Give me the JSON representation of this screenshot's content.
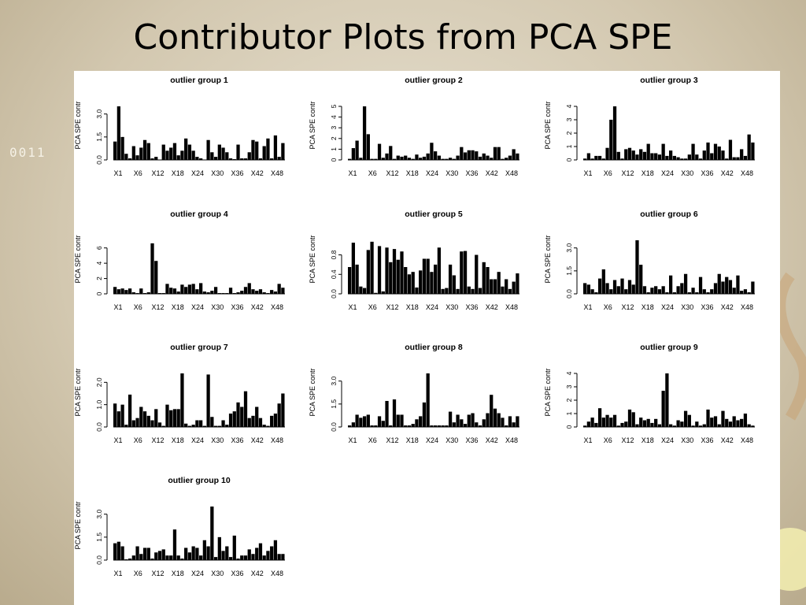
{
  "slide": {
    "title": "Contributor Plots from PCA SPE",
    "decor_text": "0011"
  },
  "colors": {
    "bar": "#000000",
    "panel": "#ffffff",
    "background": "#d8ceb8"
  },
  "chart_data": [
    {
      "type": "bar",
      "title": "outlier group 1",
      "ylabel": "PCA SPE contr",
      "ylim": [
        0,
        3.5
      ],
      "yticks": [
        0,
        1.5,
        3.0
      ],
      "yticklabels": [
        "0.0",
        "1.5",
        "3.0"
      ],
      "xticklabels": [
        "X1",
        "X6",
        "X12",
        "X18",
        "X24",
        "X30",
        "X36",
        "X42",
        "X48"
      ],
      "values": [
        1.2,
        3.6,
        1.5,
        0.4,
        0.1,
        0.9,
        0.3,
        0.8,
        1.3,
        1.1,
        0.1,
        0.2,
        0,
        1.0,
        0.6,
        0.8,
        1.1,
        0.3,
        0.6,
        1.4,
        1.0,
        0.6,
        0.2,
        0.1,
        0,
        1.3,
        0.5,
        0.2,
        1.0,
        0.8,
        0.5,
        0.1,
        0.05,
        1.0,
        0.1,
        0.1,
        0.5,
        1.3,
        1.2,
        0.1,
        0.9,
        1.4,
        0.1,
        1.6,
        0.2,
        1.1
      ]
    },
    {
      "type": "bar",
      "title": "outlier group 2",
      "ylabel": "PCA SPE contr",
      "ylim": [
        0,
        5
      ],
      "yticks": [
        0,
        1,
        2,
        3,
        4,
        5
      ],
      "yticklabels": [
        "0",
        "1",
        "2",
        "3",
        "4",
        "5"
      ],
      "xticklabels": [
        "X1",
        "X6",
        "X12",
        "X18",
        "X24",
        "X30",
        "X36",
        "X42",
        "X48"
      ],
      "values": [
        0.1,
        1.1,
        1.8,
        0.2,
        5.3,
        2.4,
        0.1,
        0.1,
        1.5,
        0.2,
        0.6,
        1.3,
        0.1,
        0.4,
        0.3,
        0.4,
        0.2,
        0.1,
        0.5,
        0.2,
        0.3,
        0.6,
        1.6,
        0.8,
        0.4,
        0.1,
        0.1,
        0.2,
        0.1,
        0.4,
        1.2,
        0.7,
        0.9,
        0.9,
        0.8,
        0.3,
        0.6,
        0.4,
        0.2,
        1.2,
        1.2,
        0.1,
        0.2,
        0.4,
        1.0,
        0.6
      ]
    },
    {
      "type": "bar",
      "title": "outlier group 3",
      "ylabel": "PCA SPE contr",
      "ylim": [
        0,
        4
      ],
      "yticks": [
        0,
        1,
        2,
        3,
        4
      ],
      "yticklabels": [
        "0",
        "1",
        "2",
        "3",
        "4"
      ],
      "xticklabels": [
        "X1",
        "X6",
        "X12",
        "X18",
        "X24",
        "X30",
        "X36",
        "X42",
        "X48"
      ],
      "values": [
        0.1,
        0.5,
        0.1,
        0.3,
        0.3,
        0.1,
        0.9,
        3.0,
        4.1,
        0.6,
        0.1,
        0.8,
        0.9,
        0.7,
        0.4,
        0.8,
        0.6,
        1.2,
        0.5,
        0.5,
        0.4,
        1.2,
        0.3,
        0.7,
        0.3,
        0.2,
        0.1,
        0.1,
        0.4,
        1.2,
        0.4,
        0.1,
        0.7,
        1.3,
        0.5,
        1.2,
        1.0,
        0.7,
        0.1,
        1.5,
        0.2,
        0.2,
        0.8,
        0.3,
        1.9,
        1.3
      ]
    },
    {
      "type": "bar",
      "title": "outlier group 4",
      "ylabel": "PCA SPE contr",
      "ylim": [
        0,
        7
      ],
      "yticks": [
        0,
        2,
        4,
        6
      ],
      "yticklabels": [
        "0",
        "2",
        "4",
        "6"
      ],
      "xticklabels": [
        "X1",
        "X6",
        "X12",
        "X18",
        "X24",
        "X30",
        "X36",
        "X42",
        "X48"
      ],
      "values": [
        0.9,
        0.6,
        0.7,
        0.5,
        0.7,
        0.2,
        0.1,
        0.7,
        0.1,
        0.2,
        6.6,
        4.3,
        0.1,
        0.1,
        1.3,
        0.8,
        0.7,
        0.3,
        1.2,
        0.9,
        1.2,
        1.3,
        0.6,
        1.4,
        0.3,
        0.2,
        0.4,
        0.9,
        0.1,
        0.1,
        0.1,
        0.8,
        0.1,
        0.2,
        0.4,
        0.9,
        1.4,
        0.6,
        0.4,
        0.6,
        0.2,
        0.1,
        0.5,
        0.3,
        1.3,
        0.8
      ]
    },
    {
      "type": "bar",
      "title": "outlier group 5",
      "ylabel": "PCA SPE contr",
      "ylim": [
        0,
        1.1
      ],
      "yticks": [
        0,
        0.4,
        0.8
      ],
      "yticklabels": [
        "0.0",
        "0.4",
        "0.8"
      ],
      "xticklabels": [
        "X1",
        "X6",
        "X12",
        "X18",
        "X24",
        "X30",
        "X36",
        "X42",
        "X48"
      ],
      "values": [
        0.55,
        1.05,
        0.6,
        0.15,
        0.12,
        0.9,
        1.07,
        0.02,
        0.98,
        0.05,
        0.95,
        0.65,
        0.92,
        0.7,
        0.87,
        0.55,
        0.4,
        0.45,
        0.13,
        0.48,
        0.72,
        0.72,
        0.45,
        0.6,
        0.95,
        0.1,
        0.12,
        0.6,
        0.38,
        0.1,
        0.87,
        0.88,
        0.15,
        0.1,
        0.8,
        0.12,
        0.65,
        0.55,
        0.3,
        0.3,
        0.45,
        0.15,
        0.3,
        0.1,
        0.25,
        0.42
      ]
    },
    {
      "type": "bar",
      "title": "outlier group 6",
      "ylabel": "PCA SPE contr",
      "ylim": [
        0,
        3.5
      ],
      "yticks": [
        0,
        1.5,
        3.0
      ],
      "yticklabels": [
        "0.0",
        "1.5",
        "3.0"
      ],
      "xticklabels": [
        "X1",
        "X6",
        "X12",
        "X18",
        "X24",
        "X30",
        "X36",
        "X42",
        "X48"
      ],
      "values": [
        0.7,
        0.6,
        0.3,
        0.1,
        1.0,
        1.6,
        0.7,
        0.3,
        0.9,
        0.5,
        1.0,
        0.3,
        0.9,
        0.6,
        3.5,
        1.9,
        0.5,
        0.1,
        0.4,
        0.5,
        0.3,
        0.5,
        0.1,
        1.2,
        0.1,
        0.5,
        0.7,
        1.3,
        0.1,
        0.4,
        0.1,
        1.1,
        0.3,
        0.1,
        0.3,
        0.7,
        1.3,
        0.8,
        1.1,
        0.9,
        0.4,
        1.2,
        0.2,
        0.3,
        0.1,
        0.8
      ]
    },
    {
      "type": "bar",
      "title": "outlier group 7",
      "ylabel": "PCA SPE contr",
      "ylim": [
        0,
        2.4
      ],
      "yticks": [
        0,
        1.0,
        2.0
      ],
      "yticklabels": [
        "0.0",
        "1.0",
        "2.0"
      ],
      "xticklabels": [
        "X1",
        "X6",
        "X12",
        "X18",
        "X24",
        "X30",
        "X36",
        "X42",
        "X48"
      ],
      "values": [
        1.05,
        0.7,
        1.0,
        0.1,
        1.45,
        0.3,
        0.4,
        0.9,
        0.7,
        0.5,
        0.3,
        0.8,
        0.2,
        0.05,
        1.0,
        0.75,
        0.8,
        0.8,
        2.4,
        0.15,
        0.05,
        0.1,
        0.3,
        0.3,
        0.05,
        2.35,
        0.45,
        0.05,
        0.05,
        0.3,
        0.1,
        0.6,
        0.7,
        1.1,
        0.9,
        1.6,
        0.4,
        0.5,
        0.9,
        0.4,
        0.1,
        0.05,
        0.5,
        0.6,
        1.05,
        1.5
      ]
    },
    {
      "type": "bar",
      "title": "outlier group 8",
      "ylabel": "PCA SPE contr",
      "ylim": [
        0,
        3.5
      ],
      "yticks": [
        0,
        1.5,
        3.0
      ],
      "yticklabels": [
        "0.0",
        "1.5",
        "3.0"
      ],
      "xticklabels": [
        "X1",
        "X6",
        "X12",
        "X18",
        "X24",
        "X30",
        "X36",
        "X42",
        "X48"
      ],
      "values": [
        0.1,
        0.3,
        0.8,
        0.6,
        0.7,
        0.8,
        0.1,
        0.1,
        0.7,
        0.4,
        1.7,
        0.1,
        1.8,
        0.8,
        0.8,
        0.1,
        0.1,
        0.2,
        0.5,
        0.7,
        1.6,
        3.5,
        0.1,
        0.1,
        0.1,
        0.1,
        0.1,
        1.0,
        0.3,
        0.8,
        0.5,
        0.2,
        0.8,
        0.9,
        0.3,
        0.1,
        0.5,
        0.9,
        2.1,
        1.2,
        0.9,
        0.6,
        0.1,
        0.7,
        0.3,
        0.7
      ]
    },
    {
      "type": "bar",
      "title": "outlier group 9",
      "ylabel": "PCA SPE contr",
      "ylim": [
        0,
        4
      ],
      "yticks": [
        0,
        1,
        2,
        3,
        4
      ],
      "yticklabels": [
        "0",
        "1",
        "2",
        "3",
        "4"
      ],
      "xticklabels": [
        "X1",
        "X6",
        "X12",
        "X18",
        "X24",
        "X30",
        "X36",
        "X42",
        "X48"
      ],
      "values": [
        0.1,
        0.4,
        0.7,
        0.3,
        1.4,
        0.7,
        0.9,
        0.7,
        0.9,
        0.1,
        0.3,
        0.4,
        1.3,
        1.1,
        0.2,
        0.7,
        0.5,
        0.6,
        0.3,
        0.6,
        0.2,
        2.7,
        4.2,
        0.2,
        0.1,
        0.5,
        0.4,
        1.2,
        0.9,
        0.1,
        0.4,
        0.1,
        0.2,
        1.3,
        0.7,
        0.8,
        0.2,
        1.2,
        0.6,
        0.4,
        0.8,
        0.5,
        0.6,
        1.0,
        0.2,
        0.1
      ]
    },
    {
      "type": "bar",
      "title": "outlier group 10",
      "ylabel": "PCA SPE contr",
      "ylim": [
        0,
        3.5
      ],
      "yticks": [
        0,
        1.5,
        3.0
      ],
      "yticklabels": [
        "0.0",
        "1.5",
        "3.0"
      ],
      "xticklabels": [
        "X1",
        "X6",
        "X12",
        "X18",
        "X24",
        "X30",
        "X36",
        "X42",
        "X48"
      ],
      "values": [
        1.1,
        1.2,
        0.9,
        0.05,
        0.1,
        0.3,
        0.9,
        0.4,
        0.8,
        0.8,
        0.1,
        0.5,
        0.6,
        0.7,
        0.3,
        0.3,
        2.0,
        0.3,
        0.1,
        0.8,
        0.5,
        0.9,
        0.8,
        0.3,
        1.3,
        0.9,
        3.5,
        0.2,
        1.5,
        0.6,
        0.9,
        0.2,
        1.6,
        0.1,
        0.3,
        0.3,
        0.7,
        0.4,
        0.8,
        1.1,
        0.3,
        0.6,
        0.9,
        1.3,
        0.4,
        0.4
      ]
    }
  ]
}
